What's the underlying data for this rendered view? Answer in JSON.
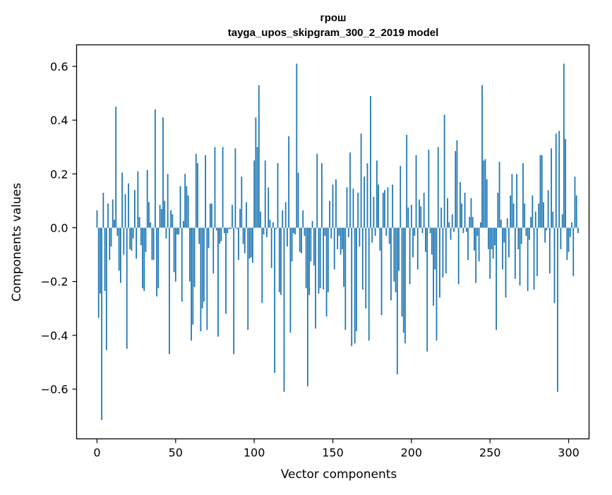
{
  "chart_data": {
    "type": "bar",
    "title": "грош",
    "subtitle": "tayga_upos_skipgram_300_2_2019 model",
    "xlabel": "Vector components",
    "ylabel": "Components values",
    "xlim": [
      -13,
      313
    ],
    "ylim": [
      -0.785,
      0.68
    ],
    "xticks": [
      0,
      50,
      100,
      150,
      200,
      250,
      300
    ],
    "xtick_labels": [
      "0",
      "50",
      "100",
      "150",
      "200",
      "250",
      "300"
    ],
    "yticks": [
      -0.6,
      -0.4,
      -0.2,
      0.0,
      0.2,
      0.4,
      0.6
    ],
    "ytick_labels": [
      "−0.6",
      "−0.4",
      "−0.2",
      "0.0",
      "0.2",
      "0.4",
      "0.6"
    ],
    "grid": false,
    "bar_color": "#1f77b4",
    "values": [
      0.065,
      -0.335,
      -0.245,
      -0.715,
      0.13,
      -0.235,
      -0.455,
      0.09,
      -0.12,
      -0.07,
      0.105,
      0.03,
      0.45,
      -0.03,
      -0.16,
      -0.205,
      0.205,
      -0.1,
      0.125,
      -0.45,
      0.165,
      -0.08,
      -0.085,
      -0.04,
      0.14,
      -0.115,
      0.21,
      0.04,
      -0.065,
      -0.225,
      -0.235,
      -0.09,
      0.215,
      0.095,
      0.02,
      -0.12,
      -0.12,
      0.44,
      -0.255,
      -0.225,
      0.085,
      0.07,
      0.41,
      0.1,
      -0.04,
      0.2,
      -0.47,
      0.065,
      0.05,
      -0.165,
      -0.2,
      -0.025,
      -0.025,
      0.155,
      -0.275,
      0.025,
      0.2,
      0.155,
      0.12,
      -0.2,
      -0.42,
      -0.36,
      -0.22,
      0.275,
      0.24,
      -0.06,
      -0.385,
      -0.3,
      -0.275,
      0.27,
      -0.38,
      -0.075,
      0.09,
      0.09,
      -0.17,
      0.3,
      -0.01,
      -0.405,
      -0.06,
      -0.05,
      0.3,
      -0.02,
      -0.32,
      -0.02,
      -0.005,
      -0.005,
      0.085,
      -0.47,
      0.295,
      -0.005,
      -0.12,
      0.07,
      0.19,
      -0.06,
      -0.095,
      0.095,
      -0.38,
      -0.115,
      -0.11,
      -0.13,
      0.25,
      0.41,
      0.3,
      0.53,
      0.06,
      -0.28,
      -0.025,
      0.25,
      -0.035,
      0.15,
      0.03,
      -0.15,
      0.02,
      -0.54,
      -0.005,
      0.24,
      -0.24,
      -0.25,
      0.065,
      -0.61,
      0.095,
      -0.07,
      0.34,
      -0.39,
      -0.125,
      -0.02,
      -0.025,
      0.61,
      0.205,
      -0.09,
      -0.095,
      0.065,
      -0.03,
      -0.225,
      -0.59,
      -0.25,
      -0.125,
      0.025,
      -0.14,
      -0.375,
      0.275,
      -0.245,
      -0.225,
      0.24,
      -0.23,
      -0.03,
      -0.33,
      -0.24,
      0.1,
      -0.04,
      0.16,
      -0.155,
      0.18,
      -0.08,
      -0.03,
      -0.1,
      -0.08,
      -0.22,
      -0.38,
      0.15,
      -0.035,
      0.28,
      -0.44,
      0.145,
      -0.43,
      -0.385,
      0.13,
      -0.07,
      0.35,
      -0.23,
      0.19,
      -0.3,
      0.24,
      -0.42,
      0.49,
      -0.055,
      0.115,
      -0.03,
      0.25,
      0.16,
      -0.085,
      -0.325,
      0.13,
      0.14,
      -0.03,
      0.15,
      -0.06,
      -0.27,
      0.16,
      -0.2,
      -0.24,
      -0.545,
      -0.16,
      0.23,
      -0.33,
      -0.39,
      -0.43,
      0.345,
      0.075,
      -0.21,
      0.085,
      -0.11,
      -0.03,
      0.27,
      -0.155,
      0.105,
      0.08,
      -0.02,
      0.13,
      -0.09,
      -0.46,
      0.29,
      -0.02,
      -0.1,
      -0.29,
      -0.155,
      -0.42,
      0.3,
      -0.26,
      0.075,
      -0.185,
      0.42,
      -0.17,
      0.11,
      0.02,
      -0.045,
      0.05,
      -0.015,
      0.285,
      0.325,
      -0.21,
      0.17,
      0.09,
      -0.02,
      0.13,
      -0.015,
      -0.12,
      0.04,
      0.11,
      0.04,
      -0.085,
      -0.205,
      -0.03,
      -0.125,
      0.02,
      0.53,
      0.25,
      0.255,
      0.18,
      -0.08,
      -0.19,
      -0.08,
      -0.115,
      -0.065,
      -0.38,
      0.13,
      0.245,
      0.03,
      -0.155,
      -0.055,
      -0.26,
      0.035,
      -0.11,
      0.12,
      0.2,
      0.09,
      -0.19,
      0.2,
      -0.08,
      -0.215,
      -0.06,
      0.24,
      0.09,
      -0.03,
      -0.235,
      -0.045,
      0.04,
      0.12,
      -0.23,
      0.06,
      -0.18,
      0.09,
      0.27,
      0.27,
      0.095,
      -0.055,
      -0.01,
      0.14,
      -0.17,
      0.295,
      0.06,
      -0.28,
      0.35,
      -0.61,
      0.36,
      -0.08,
      0.05,
      0.61,
      0.33,
      -0.12,
      -0.09,
      -0.035,
      0.02,
      -0.18,
      0.19,
      0.12,
      -0.02
    ]
  }
}
